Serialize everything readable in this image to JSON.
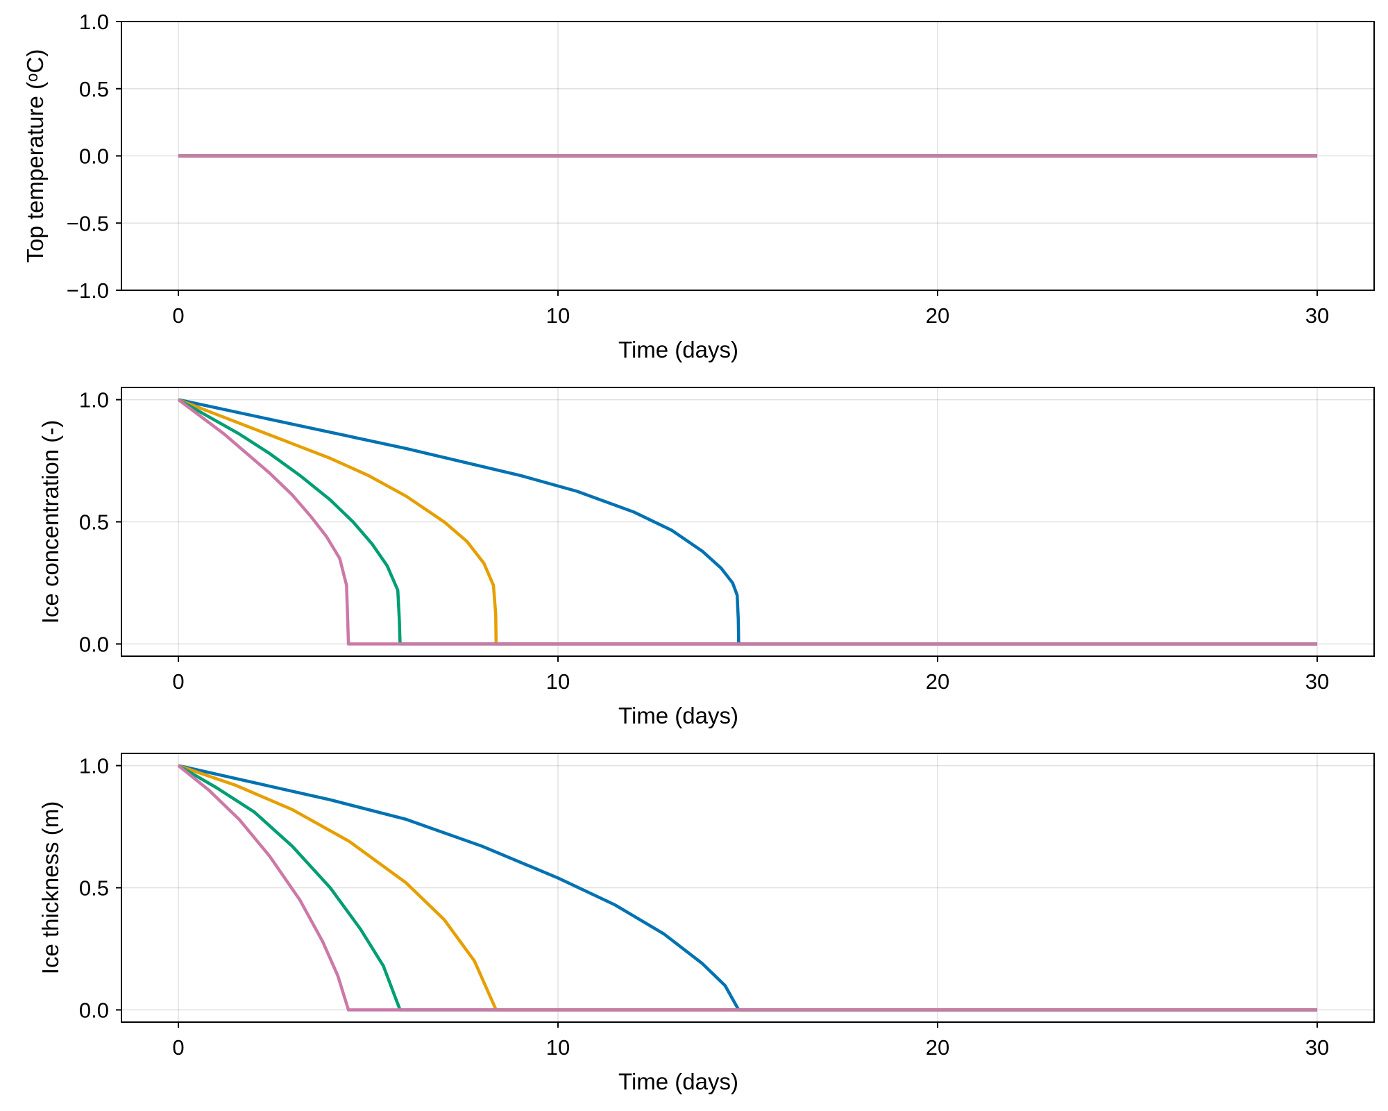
{
  "chart_data": [
    {
      "type": "line",
      "xlabel": "Time (days)",
      "ylabel": "Top temperature (ᵒC)",
      "xlim": [
        -1.5,
        31.5
      ],
      "ylim": [
        -1.0,
        1.0
      ],
      "xticks": [
        "0",
        "10",
        "20",
        "30"
      ],
      "xtick_values": [
        0,
        10,
        20,
        30
      ],
      "yticks": [
        "−1.0",
        "−0.5",
        "0.0",
        "0.5",
        "1.0"
      ],
      "ytick_values": [
        -1.0,
        -0.5,
        0.0,
        0.5,
        1.0
      ],
      "grid": true,
      "series": [
        {
          "color": "#0072b2",
          "x": [
            0,
            30
          ],
          "y": [
            0,
            0
          ]
        },
        {
          "color": "#e69f00",
          "x": [
            0,
            30
          ],
          "y": [
            0,
            0
          ]
        },
        {
          "color": "#009e73",
          "x": [
            0,
            30
          ],
          "y": [
            0,
            0
          ]
        },
        {
          "color": "#cc79a7",
          "x": [
            0,
            30
          ],
          "y": [
            0,
            0
          ]
        }
      ]
    },
    {
      "type": "line",
      "xlabel": "Time (days)",
      "ylabel": "Ice concentration (-)",
      "xlim": [
        -1.5,
        31.5
      ],
      "ylim": [
        -0.05,
        1.05
      ],
      "xticks": [
        "0",
        "10",
        "20",
        "30"
      ],
      "xtick_values": [
        0,
        10,
        20,
        30
      ],
      "yticks": [
        "0.0",
        "0.5",
        "1.0"
      ],
      "ytick_values": [
        0.0,
        0.5,
        1.0
      ],
      "grid": true,
      "series": [
        {
          "color": "#0072b2",
          "x": [
            0,
            1.5,
            3,
            4.5,
            6,
            7.5,
            9,
            10.5,
            12,
            13,
            13.8,
            14.3,
            14.6,
            14.72,
            14.75,
            14.76,
            30
          ],
          "y": [
            1.0,
            0.95,
            0.9,
            0.85,
            0.8,
            0.745,
            0.69,
            0.625,
            0.54,
            0.465,
            0.38,
            0.31,
            0.25,
            0.2,
            0.1,
            0.0,
            0.0
          ]
        },
        {
          "color": "#e69f00",
          "x": [
            0,
            1,
            2,
            3,
            4,
            5,
            6,
            7,
            7.6,
            8.05,
            8.3,
            8.36,
            8.37,
            30
          ],
          "y": [
            1.0,
            0.94,
            0.88,
            0.82,
            0.76,
            0.69,
            0.605,
            0.5,
            0.42,
            0.33,
            0.24,
            0.12,
            0.0,
            0.0
          ]
        },
        {
          "color": "#009e73",
          "x": [
            0,
            0.8,
            1.6,
            2.4,
            3.2,
            4.0,
            4.6,
            5.1,
            5.5,
            5.78,
            5.82,
            5.84,
            30
          ],
          "y": [
            1.0,
            0.93,
            0.86,
            0.78,
            0.69,
            0.59,
            0.5,
            0.41,
            0.32,
            0.22,
            0.1,
            0.0,
            0.0
          ]
        },
        {
          "color": "#cc79a7",
          "x": [
            0,
            0.6,
            1.2,
            1.8,
            2.4,
            3.0,
            3.5,
            3.9,
            4.25,
            4.43,
            4.46,
            4.48,
            30
          ],
          "y": [
            1.0,
            0.93,
            0.86,
            0.78,
            0.7,
            0.61,
            0.52,
            0.44,
            0.35,
            0.24,
            0.1,
            0.0,
            0.0
          ]
        }
      ]
    },
    {
      "type": "line",
      "xlabel": "Time (days)",
      "ylabel": "Ice thickness (m)",
      "xlim": [
        -1.5,
        31.5
      ],
      "ylim": [
        -0.05,
        1.05
      ],
      "xticks": [
        "0",
        "10",
        "20",
        "30"
      ],
      "xtick_values": [
        0,
        10,
        20,
        30
      ],
      "yticks": [
        "0.0",
        "0.5",
        "1.0"
      ],
      "ytick_values": [
        0.0,
        0.5,
        1.0
      ],
      "grid": true,
      "series": [
        {
          "color": "#0072b2",
          "x": [
            0,
            2,
            4,
            6,
            8,
            10,
            11.5,
            12.8,
            13.8,
            14.4,
            14.76,
            30
          ],
          "y": [
            1.0,
            0.93,
            0.86,
            0.78,
            0.67,
            0.54,
            0.43,
            0.31,
            0.19,
            0.1,
            0.0,
            0.0
          ]
        },
        {
          "color": "#e69f00",
          "x": [
            0,
            1.5,
            3,
            4.5,
            6,
            7,
            7.8,
            8.37,
            30
          ],
          "y": [
            1.0,
            0.92,
            0.82,
            0.69,
            0.52,
            0.37,
            0.2,
            0.0,
            0.0
          ]
        },
        {
          "color": "#009e73",
          "x": [
            0,
            1,
            2,
            3,
            4,
            4.8,
            5.4,
            5.84,
            30
          ],
          "y": [
            1.0,
            0.91,
            0.81,
            0.67,
            0.5,
            0.33,
            0.18,
            0.0,
            0.0
          ]
        },
        {
          "color": "#cc79a7",
          "x": [
            0,
            0.8,
            1.6,
            2.4,
            3.2,
            3.8,
            4.2,
            4.48,
            30
          ],
          "y": [
            1.0,
            0.9,
            0.78,
            0.63,
            0.45,
            0.28,
            0.14,
            0.0,
            0.0
          ]
        }
      ]
    }
  ]
}
